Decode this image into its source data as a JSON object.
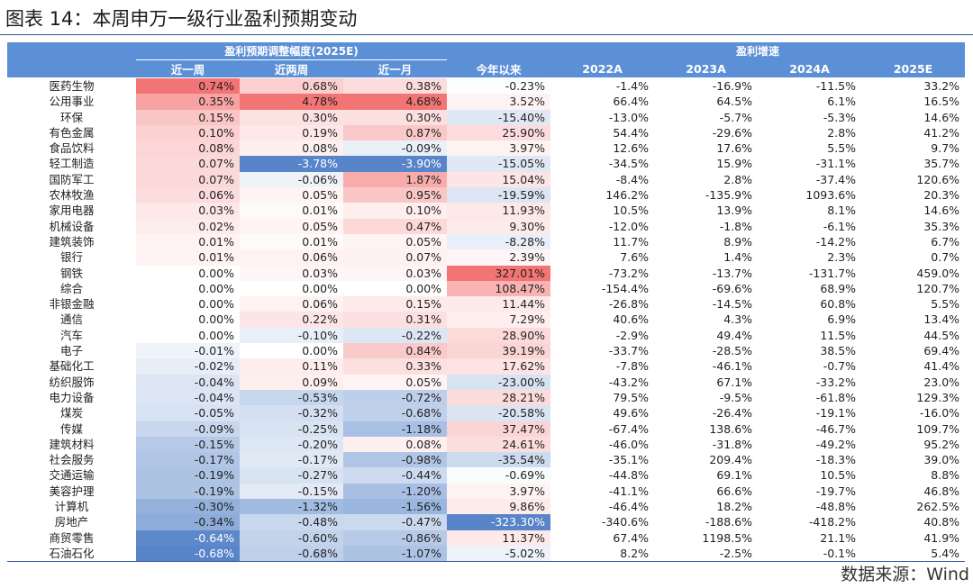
{
  "figure": {
    "title": "图表 14：本周申万一级行业盈利预期变动",
    "source": "数据来源：Wind"
  },
  "table": {
    "group_headers": {
      "revision": "盈利预期调整幅度(2025E)",
      "growth": "盈利增速"
    },
    "columns": [
      "近一周",
      "近两周",
      "近一月",
      "今年以来",
      "2022A",
      "2023A",
      "2024A",
      "2025E"
    ],
    "colors": {
      "positive": "#f26464",
      "negative": "#4f7fc6",
      "header": "#5b8fd6",
      "rule": "#2f5a9a"
    },
    "rows": [
      {
        "name": "医药生物",
        "vals": [
          "0.74%",
          "0.68%",
          "0.38%",
          "-0.23%",
          "-1.4%",
          "-16.9%",
          "-11.5%",
          "33.2%"
        ]
      },
      {
        "name": "公用事业",
        "vals": [
          "0.35%",
          "4.78%",
          "4.68%",
          "3.52%",
          "66.4%",
          "64.5%",
          "6.1%",
          "16.5%"
        ]
      },
      {
        "name": "环保",
        "vals": [
          "0.15%",
          "0.30%",
          "0.30%",
          "-15.40%",
          "-13.0%",
          "-5.7%",
          "-5.3%",
          "14.6%"
        ]
      },
      {
        "name": "有色金属",
        "vals": [
          "0.10%",
          "0.19%",
          "0.87%",
          "25.90%",
          "54.4%",
          "-29.6%",
          "2.8%",
          "41.2%"
        ]
      },
      {
        "name": "食品饮料",
        "vals": [
          "0.08%",
          "0.08%",
          "-0.09%",
          "3.97%",
          "12.6%",
          "17.6%",
          "5.5%",
          "9.7%"
        ]
      },
      {
        "name": "轻工制造",
        "vals": [
          "0.07%",
          "-3.78%",
          "-3.90%",
          "-15.05%",
          "-34.5%",
          "15.9%",
          "-31.1%",
          "35.7%"
        ]
      },
      {
        "name": "国防军工",
        "vals": [
          "0.07%",
          "-0.06%",
          "1.87%",
          "15.04%",
          "-8.4%",
          "2.8%",
          "-37.4%",
          "120.6%"
        ]
      },
      {
        "name": "农林牧渔",
        "vals": [
          "0.06%",
          "0.05%",
          "0.95%",
          "-19.59%",
          "146.2%",
          "-135.9%",
          "1093.6%",
          "20.3%"
        ]
      },
      {
        "name": "家用电器",
        "vals": [
          "0.03%",
          "0.01%",
          "0.10%",
          "11.93%",
          "10.5%",
          "13.9%",
          "8.1%",
          "14.6%"
        ]
      },
      {
        "name": "机械设备",
        "vals": [
          "0.02%",
          "0.05%",
          "0.47%",
          "9.30%",
          "-12.0%",
          "-1.8%",
          "-6.1%",
          "35.3%"
        ]
      },
      {
        "name": "建筑装饰",
        "vals": [
          "0.01%",
          "0.01%",
          "0.05%",
          "-8.28%",
          "11.7%",
          "8.9%",
          "-14.2%",
          "6.7%"
        ]
      },
      {
        "name": "银行",
        "vals": [
          "0.01%",
          "0.06%",
          "0.07%",
          "2.39%",
          "7.6%",
          "1.4%",
          "2.3%",
          "0.7%"
        ]
      },
      {
        "name": "钢铁",
        "vals": [
          "0.00%",
          "0.03%",
          "0.03%",
          "327.01%",
          "-73.2%",
          "-13.7%",
          "-131.7%",
          "459.0%"
        ]
      },
      {
        "name": "综合",
        "vals": [
          "0.00%",
          "0.00%",
          "0.00%",
          "108.47%",
          "-154.4%",
          "-69.6%",
          "68.9%",
          "120.7%"
        ]
      },
      {
        "name": "非银金融",
        "vals": [
          "0.00%",
          "0.06%",
          "0.15%",
          "11.44%",
          "-26.8%",
          "-14.5%",
          "60.8%",
          "5.5%"
        ]
      },
      {
        "name": "通信",
        "vals": [
          "0.00%",
          "0.22%",
          "0.31%",
          "7.29%",
          "40.6%",
          "4.3%",
          "6.9%",
          "13.4%"
        ]
      },
      {
        "name": "汽车",
        "vals": [
          "0.00%",
          "-0.10%",
          "-0.22%",
          "28.90%",
          "-2.9%",
          "49.4%",
          "11.5%",
          "44.5%"
        ]
      },
      {
        "name": "电子",
        "vals": [
          "-0.01%",
          "0.00%",
          "0.84%",
          "39.19%",
          "-33.7%",
          "-28.5%",
          "38.5%",
          "69.4%"
        ]
      },
      {
        "name": "基础化工",
        "vals": [
          "-0.02%",
          "0.11%",
          "0.33%",
          "17.62%",
          "-7.8%",
          "-46.1%",
          "-0.7%",
          "41.4%"
        ]
      },
      {
        "name": "纺织服饰",
        "vals": [
          "-0.04%",
          "0.09%",
          "0.05%",
          "-23.00%",
          "-43.2%",
          "67.1%",
          "-33.2%",
          "23.0%"
        ]
      },
      {
        "name": "电力设备",
        "vals": [
          "-0.04%",
          "-0.53%",
          "-0.72%",
          "28.21%",
          "79.5%",
          "-9.5%",
          "-61.8%",
          "129.3%"
        ]
      },
      {
        "name": "煤炭",
        "vals": [
          "-0.05%",
          "-0.32%",
          "-0.68%",
          "-20.58%",
          "49.6%",
          "-26.4%",
          "-19.1%",
          "-16.0%"
        ]
      },
      {
        "name": "传媒",
        "vals": [
          "-0.09%",
          "-0.25%",
          "-1.18%",
          "37.47%",
          "-67.4%",
          "138.6%",
          "-46.7%",
          "109.7%"
        ]
      },
      {
        "name": "建筑材料",
        "vals": [
          "-0.15%",
          "-0.20%",
          "0.08%",
          "24.61%",
          "-46.0%",
          "-31.8%",
          "-49.2%",
          "95.2%"
        ]
      },
      {
        "name": "社会服务",
        "vals": [
          "-0.17%",
          "-0.17%",
          "-0.98%",
          "-35.54%",
          "-35.1%",
          "209.4%",
          "-18.3%",
          "39.0%"
        ]
      },
      {
        "name": "交通运输",
        "vals": [
          "-0.19%",
          "-0.27%",
          "-0.44%",
          "-0.69%",
          "-44.8%",
          "69.1%",
          "10.5%",
          "8.8%"
        ]
      },
      {
        "name": "美容护理",
        "vals": [
          "-0.19%",
          "-0.15%",
          "-1.20%",
          "3.97%",
          "-41.1%",
          "66.6%",
          "-19.7%",
          "46.8%"
        ]
      },
      {
        "name": "计算机",
        "vals": [
          "-0.30%",
          "-1.32%",
          "-1.56%",
          "9.86%",
          "-46.4%",
          "18.2%",
          "-48.8%",
          "262.5%"
        ]
      },
      {
        "name": "房地产",
        "vals": [
          "-0.34%",
          "-0.48%",
          "-0.47%",
          "-323.30%",
          "-340.6%",
          "-188.6%",
          "-418.2%",
          "40.8%"
        ]
      },
      {
        "name": "商贸零售",
        "vals": [
          "-0.64%",
          "-0.60%",
          "-0.86%",
          "11.37%",
          "67.4%",
          "1198.5%",
          "21.1%",
          "41.9%"
        ]
      },
      {
        "name": "石油石化",
        "vals": [
          "-0.68%",
          "-0.68%",
          "-1.07%",
          "-5.02%",
          "8.2%",
          "-2.5%",
          "-0.1%",
          "5.4%"
        ]
      }
    ]
  }
}
